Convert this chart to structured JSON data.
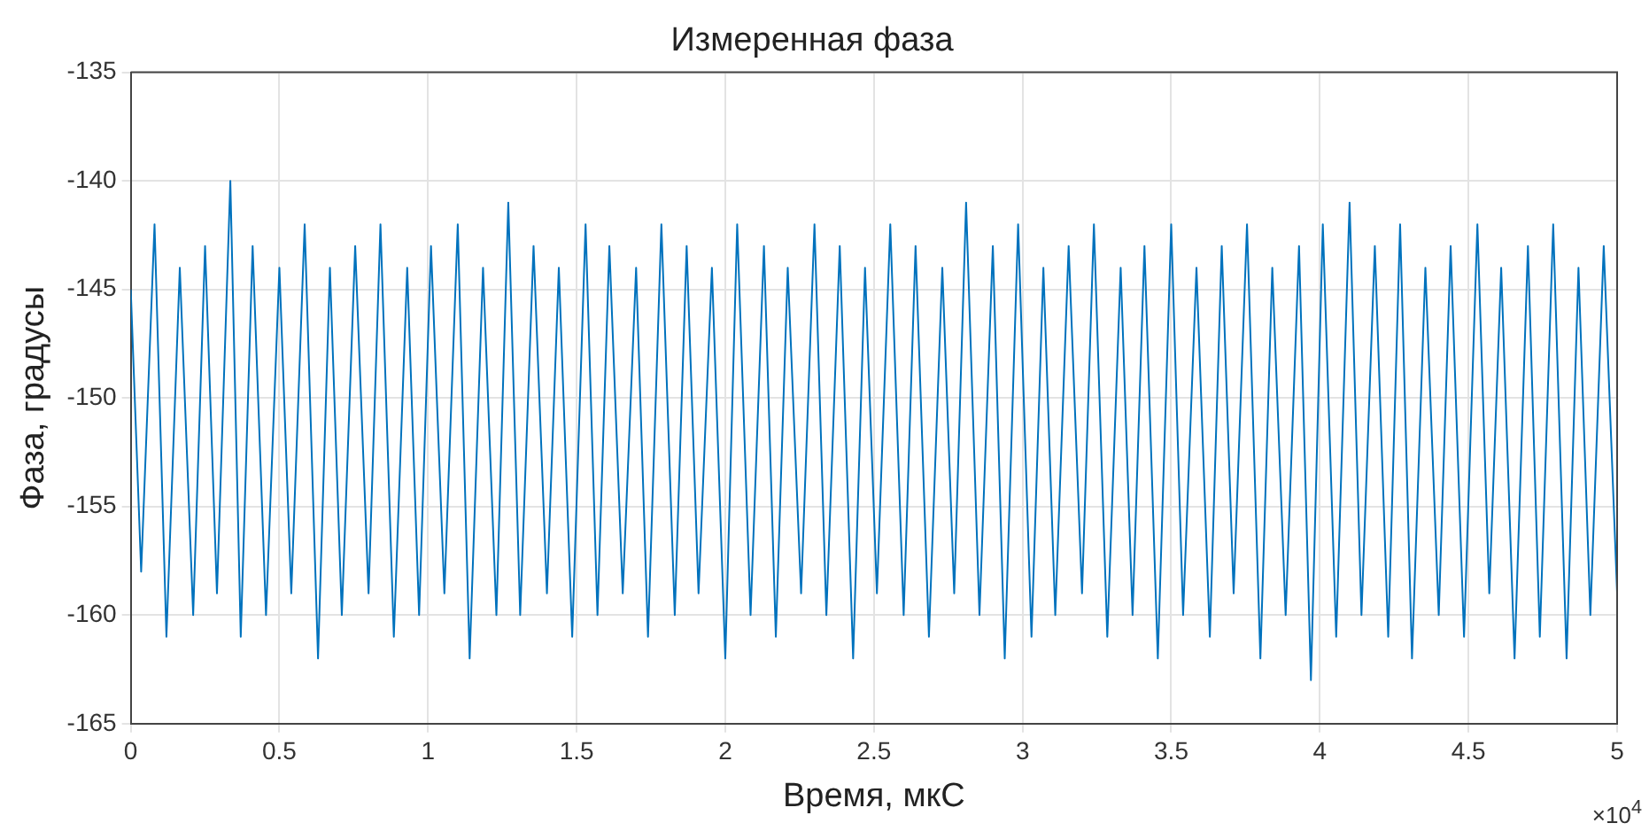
{
  "chart_data": {
    "type": "line",
    "title": "Измеренная фаза",
    "xlabel": "Время, мкС",
    "ylabel": "Фаза, градусы",
    "annotations": [
      "×10$^{4}$"
    ],
    "x": [
      0,
      0.035,
      0.08,
      0.12,
      0.165,
      0.21,
      0.25,
      0.29,
      0.335,
      0.37,
      0.41,
      0.455,
      0.5,
      0.54,
      0.585,
      0.63,
      0.67,
      0.71,
      0.755,
      0.8,
      0.84,
      0.885,
      0.93,
      0.97,
      1.01,
      1.055,
      1.1,
      1.14,
      1.185,
      1.23,
      1.27,
      1.31,
      1.355,
      1.4,
      1.44,
      1.485,
      1.53,
      1.57,
      1.61,
      1.655,
      1.7,
      1.74,
      1.785,
      1.83,
      1.87,
      1.91,
      1.955,
      2,
      2.04,
      2.085,
      2.13,
      2.17,
      2.21,
      2.255,
      2.3,
      2.34,
      2.385,
      2.43,
      2.47,
      2.51,
      2.555,
      2.6,
      2.64,
      2.685,
      2.73,
      2.77,
      2.81,
      2.855,
      2.9,
      2.94,
      2.985,
      3.03,
      3.07,
      3.11,
      3.155,
      3.2,
      3.24,
      3.285,
      3.33,
      3.37,
      3.41,
      3.455,
      3.5,
      3.54,
      3.585,
      3.63,
      3.67,
      3.71,
      3.755,
      3.8,
      3.84,
      3.885,
      3.93,
      3.97,
      4.01,
      4.055,
      4.1,
      4.14,
      4.185,
      4.23,
      4.27,
      4.31,
      4.355,
      4.4,
      4.44,
      4.485,
      4.53,
      4.57,
      4.61,
      4.655,
      4.7,
      4.74,
      4.785,
      4.83,
      4.87,
      4.91,
      4.955,
      5
    ],
    "series": [
      {
        "color": "#0072bd",
        "values": [
          -145,
          -158,
          -142,
          -161,
          -144,
          -160,
          -143,
          -159,
          -140,
          -161,
          -143,
          -160,
          -144,
          -159,
          -142,
          -162,
          -144,
          -160,
          -143,
          -159,
          -142,
          -161,
          -144,
          -160,
          -143,
          -159,
          -142,
          -162,
          -144,
          -160,
          -141,
          -160,
          -143,
          -159,
          -144,
          -161,
          -142,
          -160,
          -143,
          -159,
          -144,
          -161,
          -142,
          -160,
          -143,
          -159,
          -144,
          -162,
          -142,
          -160,
          -143,
          -161,
          -144,
          -159,
          -142,
          -160,
          -143,
          -162,
          -144,
          -159,
          -142,
          -160,
          -143,
          -161,
          -144,
          -159,
          -141,
          -160,
          -143,
          -162,
          -142,
          -161,
          -144,
          -160,
          -143,
          -159,
          -142,
          -161,
          -144,
          -160,
          -143,
          -162,
          -142,
          -160,
          -144,
          -161,
          -143,
          -159,
          -142,
          -162,
          -144,
          -160,
          -143,
          -163,
          -142,
          -161,
          -141,
          -160,
          -143,
          -161,
          -142,
          -162,
          -144,
          -160,
          -143,
          -161,
          -142,
          -159,
          -144,
          -162,
          -143,
          -161,
          -142,
          -162,
          -144,
          -160,
          -143,
          -159
        ]
      }
    ],
    "xlim": [
      0,
      5
    ],
    "ylim": [
      -165,
      -135
    ],
    "xticks": [
      0,
      0.5,
      1,
      1.5,
      2,
      2.5,
      3,
      3.5,
      4,
      4.5,
      5
    ],
    "yticks": [
      -165,
      -160,
      -155,
      -150,
      -145,
      -140,
      -135
    ],
    "grid": true,
    "legend": false,
    "marker": "none",
    "line_style": "solid"
  }
}
